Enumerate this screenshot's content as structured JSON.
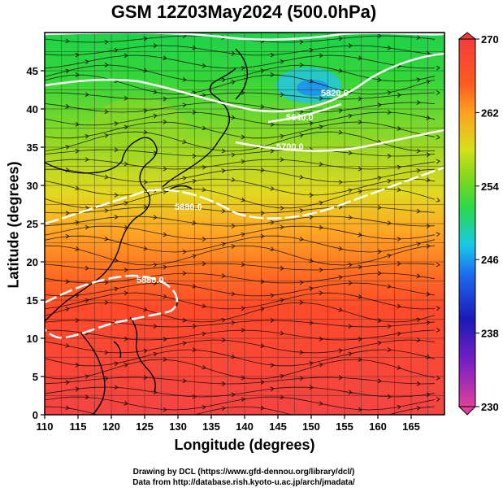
{
  "title": "GSM 12Z03May2024 (500.0hPa)",
  "map": {
    "x_axis": {
      "label": "Longitude (degrees)",
      "range": [
        110,
        170
      ],
      "ticks": [
        "110",
        "115",
        "120",
        "125",
        "130",
        "135",
        "140",
        "145",
        "150",
        "155",
        "160",
        "165"
      ]
    },
    "y_axis": {
      "label": "Latitude  (degrees)",
      "range": [
        0,
        50
      ],
      "ticks": [
        "0",
        "5",
        "10",
        "15",
        "20",
        "25",
        "30",
        "35",
        "40",
        "45"
      ]
    },
    "contour_labels": [
      "5820.0",
      "5640.0",
      "5700.0",
      "5880.0",
      "5880.0"
    ],
    "colorbar": {
      "labels": [
        "270",
        "262",
        "254",
        "246",
        "238",
        "230"
      ],
      "range": [
        230,
        270
      ],
      "colors": [
        "#e0409a",
        "#7a1fc4",
        "#1a1ab8",
        "#1e6cf0",
        "#18c8e8",
        "#2bd94a",
        "#7ed81c",
        "#d6e01a",
        "#ffa020",
        "#ff5a1e",
        "#f23c3c"
      ]
    }
  },
  "credits": {
    "line1": "Drawing by DCL (https://www.gfd-dennou.org/library/dcl/)",
    "line2": "Data from http://database.rish.kyoto-u.ac.jp/arch/jmadata/"
  }
}
